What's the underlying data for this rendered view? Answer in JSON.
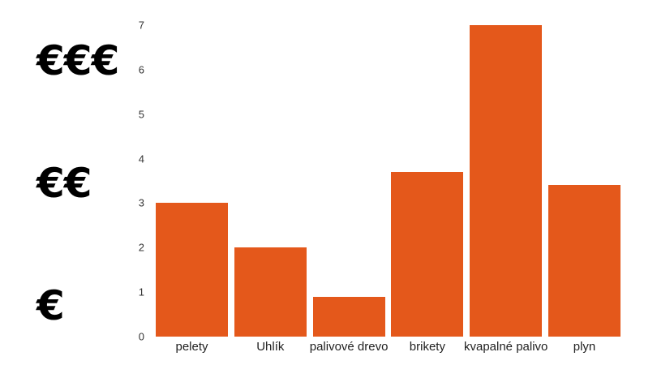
{
  "chart_data": {
    "type": "bar",
    "title": "",
    "categories": [
      "pelety",
      "Uhlík",
      "palivové drevo",
      "brikety",
      "kvapalné palivo",
      "plyn"
    ],
    "values": [
      3,
      2,
      0.9,
      3.7,
      7,
      3.4
    ],
    "xlabel": "",
    "ylabel": "",
    "ylim": [
      0,
      7
    ],
    "yticks": [
      0,
      1,
      2,
      3,
      4,
      5,
      6,
      7
    ],
    "grid": false,
    "legend_position": "none",
    "bar_color": "#E4581B",
    "tick_color": "#333333",
    "label_color": "#1f1f1f"
  },
  "cost_scale": {
    "high": "€€€",
    "medium": "€€",
    "low": "€"
  }
}
